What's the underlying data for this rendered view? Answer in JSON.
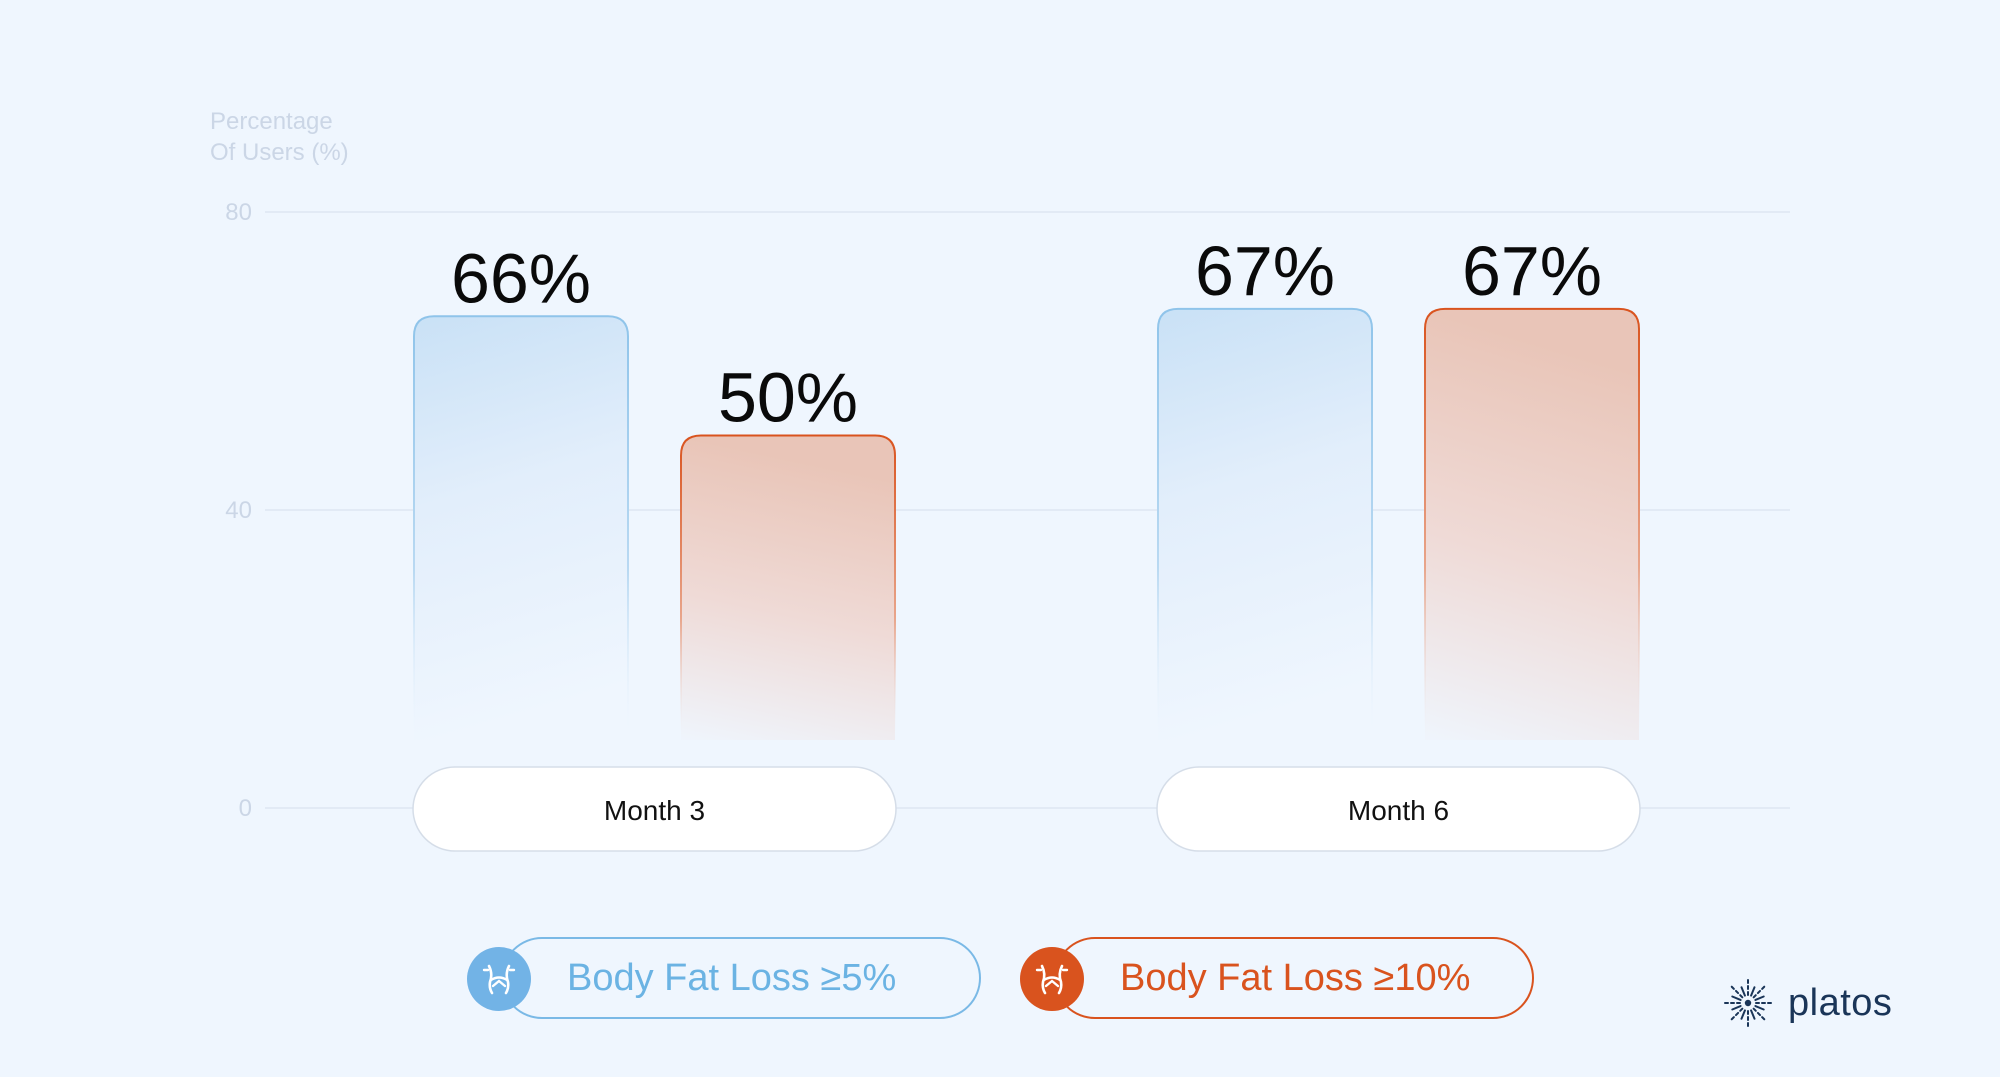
{
  "chart_data": {
    "type": "bar",
    "categories": [
      "Month 3",
      "Month 6"
    ],
    "series": [
      {
        "name": "Body Fat Loss ≥5%",
        "values": [
          66,
          67
        ],
        "labels": [
          "66%",
          "67%"
        ],
        "color": "#7ab9e6"
      },
      {
        "name": "Body Fat Loss ≥10%",
        "values": [
          50,
          67
        ],
        "labels": [
          "50%",
          "67%"
        ],
        "color": "#d9531e"
      }
    ],
    "ylabel": "Percentage Of Users (%)",
    "yticks": [
      "0",
      "40",
      "80"
    ],
    "ylim": [
      0,
      80
    ],
    "grid": true,
    "legend_position": "bottom"
  },
  "ylabel_line1": "Percentage",
  "ylabel_line2": "Of Users (%)",
  "legend": [
    {
      "label": "Body Fat Loss ≥5%",
      "icon": "waist-icon"
    },
    {
      "label": "Body Fat Loss ≥10%",
      "icon": "waist-icon"
    }
  ],
  "brand": {
    "name": "platos",
    "icon": "sparkle-logo-icon"
  }
}
